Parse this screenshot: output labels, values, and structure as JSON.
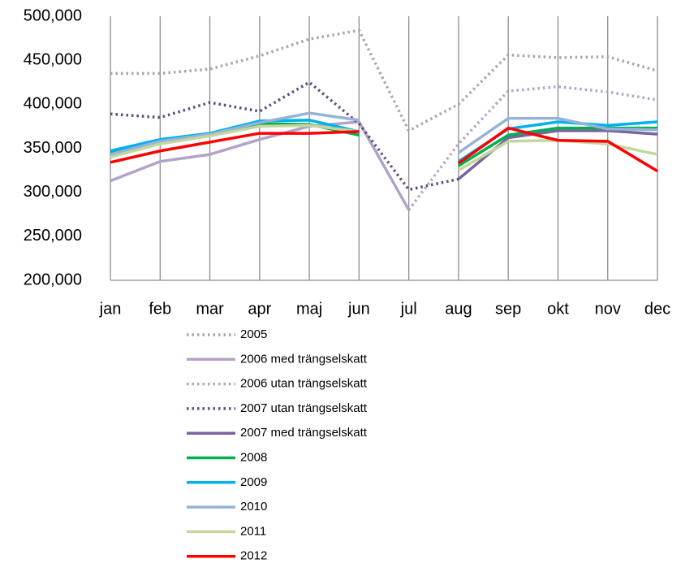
{
  "chart_data": {
    "type": "line",
    "categories": [
      "jan",
      "feb",
      "mar",
      "apr",
      "maj",
      "jun",
      "jul",
      "aug",
      "sep",
      "okt",
      "nov",
      "dec"
    ],
    "ylim": [
      200000,
      500000
    ],
    "yticks": [
      {
        "value": 200000,
        "label": "200,000"
      },
      {
        "value": 250000,
        "label": "250,000"
      },
      {
        "value": 300000,
        "label": "300,000"
      },
      {
        "value": 350000,
        "label": "350,000"
      },
      {
        "value": 400000,
        "label": "400,000"
      },
      {
        "value": 450000,
        "label": "450,000"
      },
      {
        "value": 500000,
        "label": "500,000"
      }
    ],
    "legend": "bottom",
    "series": [
      {
        "name": "2005",
        "color": "#a6a6a6",
        "linestyle": "dotted",
        "values": [
          435000,
          435000,
          440000,
          455000,
          474000,
          484000,
          370000,
          400000,
          456000,
          453000,
          454000,
          438000
        ]
      },
      {
        "name": "2006 med trängselskatt",
        "color": "#b3a2c7",
        "linestyle": "solid",
        "values": [
          313000,
          335000,
          343000,
          360000,
          375000,
          380000,
          280000,
          null,
          null,
          null,
          null,
          null
        ]
      },
      {
        "name": "2006 utan trängselskatt",
        "color": "#b3a2c7",
        "linestyle": "dotted",
        "values": [
          null,
          null,
          null,
          null,
          null,
          null,
          280000,
          355000,
          415000,
          420000,
          414000,
          405000
        ]
      },
      {
        "name": "2007 utan trängselskatt",
        "color": "#604a7b",
        "linestyle": "dotted",
        "values": [
          389000,
          385000,
          402000,
          392000,
          425000,
          378000,
          303000,
          315000,
          null,
          null,
          null,
          null
        ]
      },
      {
        "name": "2007 med trängselskatt",
        "color": "#7a63a0",
        "linestyle": "solid",
        "values": [
          null,
          null,
          null,
          null,
          null,
          null,
          null,
          315000,
          362000,
          370000,
          370000,
          366000
        ]
      },
      {
        "name": "2008",
        "color": "#00b050",
        "linestyle": "solid",
        "values": [
          345000,
          358000,
          365000,
          378000,
          377000,
          365000,
          null,
          330000,
          365000,
          373000,
          373000,
          373000
        ]
      },
      {
        "name": "2009",
        "color": "#00b0f0",
        "linestyle": "solid",
        "values": [
          347000,
          360000,
          367000,
          381000,
          382000,
          369000,
          null,
          335000,
          372000,
          380000,
          376000,
          380000
        ]
      },
      {
        "name": "2010",
        "color": "#95b3d7",
        "linestyle": "solid",
        "values": [
          343000,
          358000,
          366000,
          379000,
          390000,
          382000,
          null,
          345000,
          384000,
          384000,
          372000,
          371000
        ]
      },
      {
        "name": "2011",
        "color": "#c3d69b",
        "linestyle": "solid",
        "values": [
          340000,
          355000,
          364000,
          375000,
          376000,
          369000,
          null,
          325000,
          358000,
          359000,
          355000,
          343000
        ]
      },
      {
        "name": "2012",
        "color": "#ff0000",
        "linestyle": "solid",
        "values": [
          334000,
          347000,
          357000,
          367000,
          367000,
          369000,
          null,
          333000,
          373000,
          359000,
          358000,
          324000
        ]
      }
    ]
  }
}
